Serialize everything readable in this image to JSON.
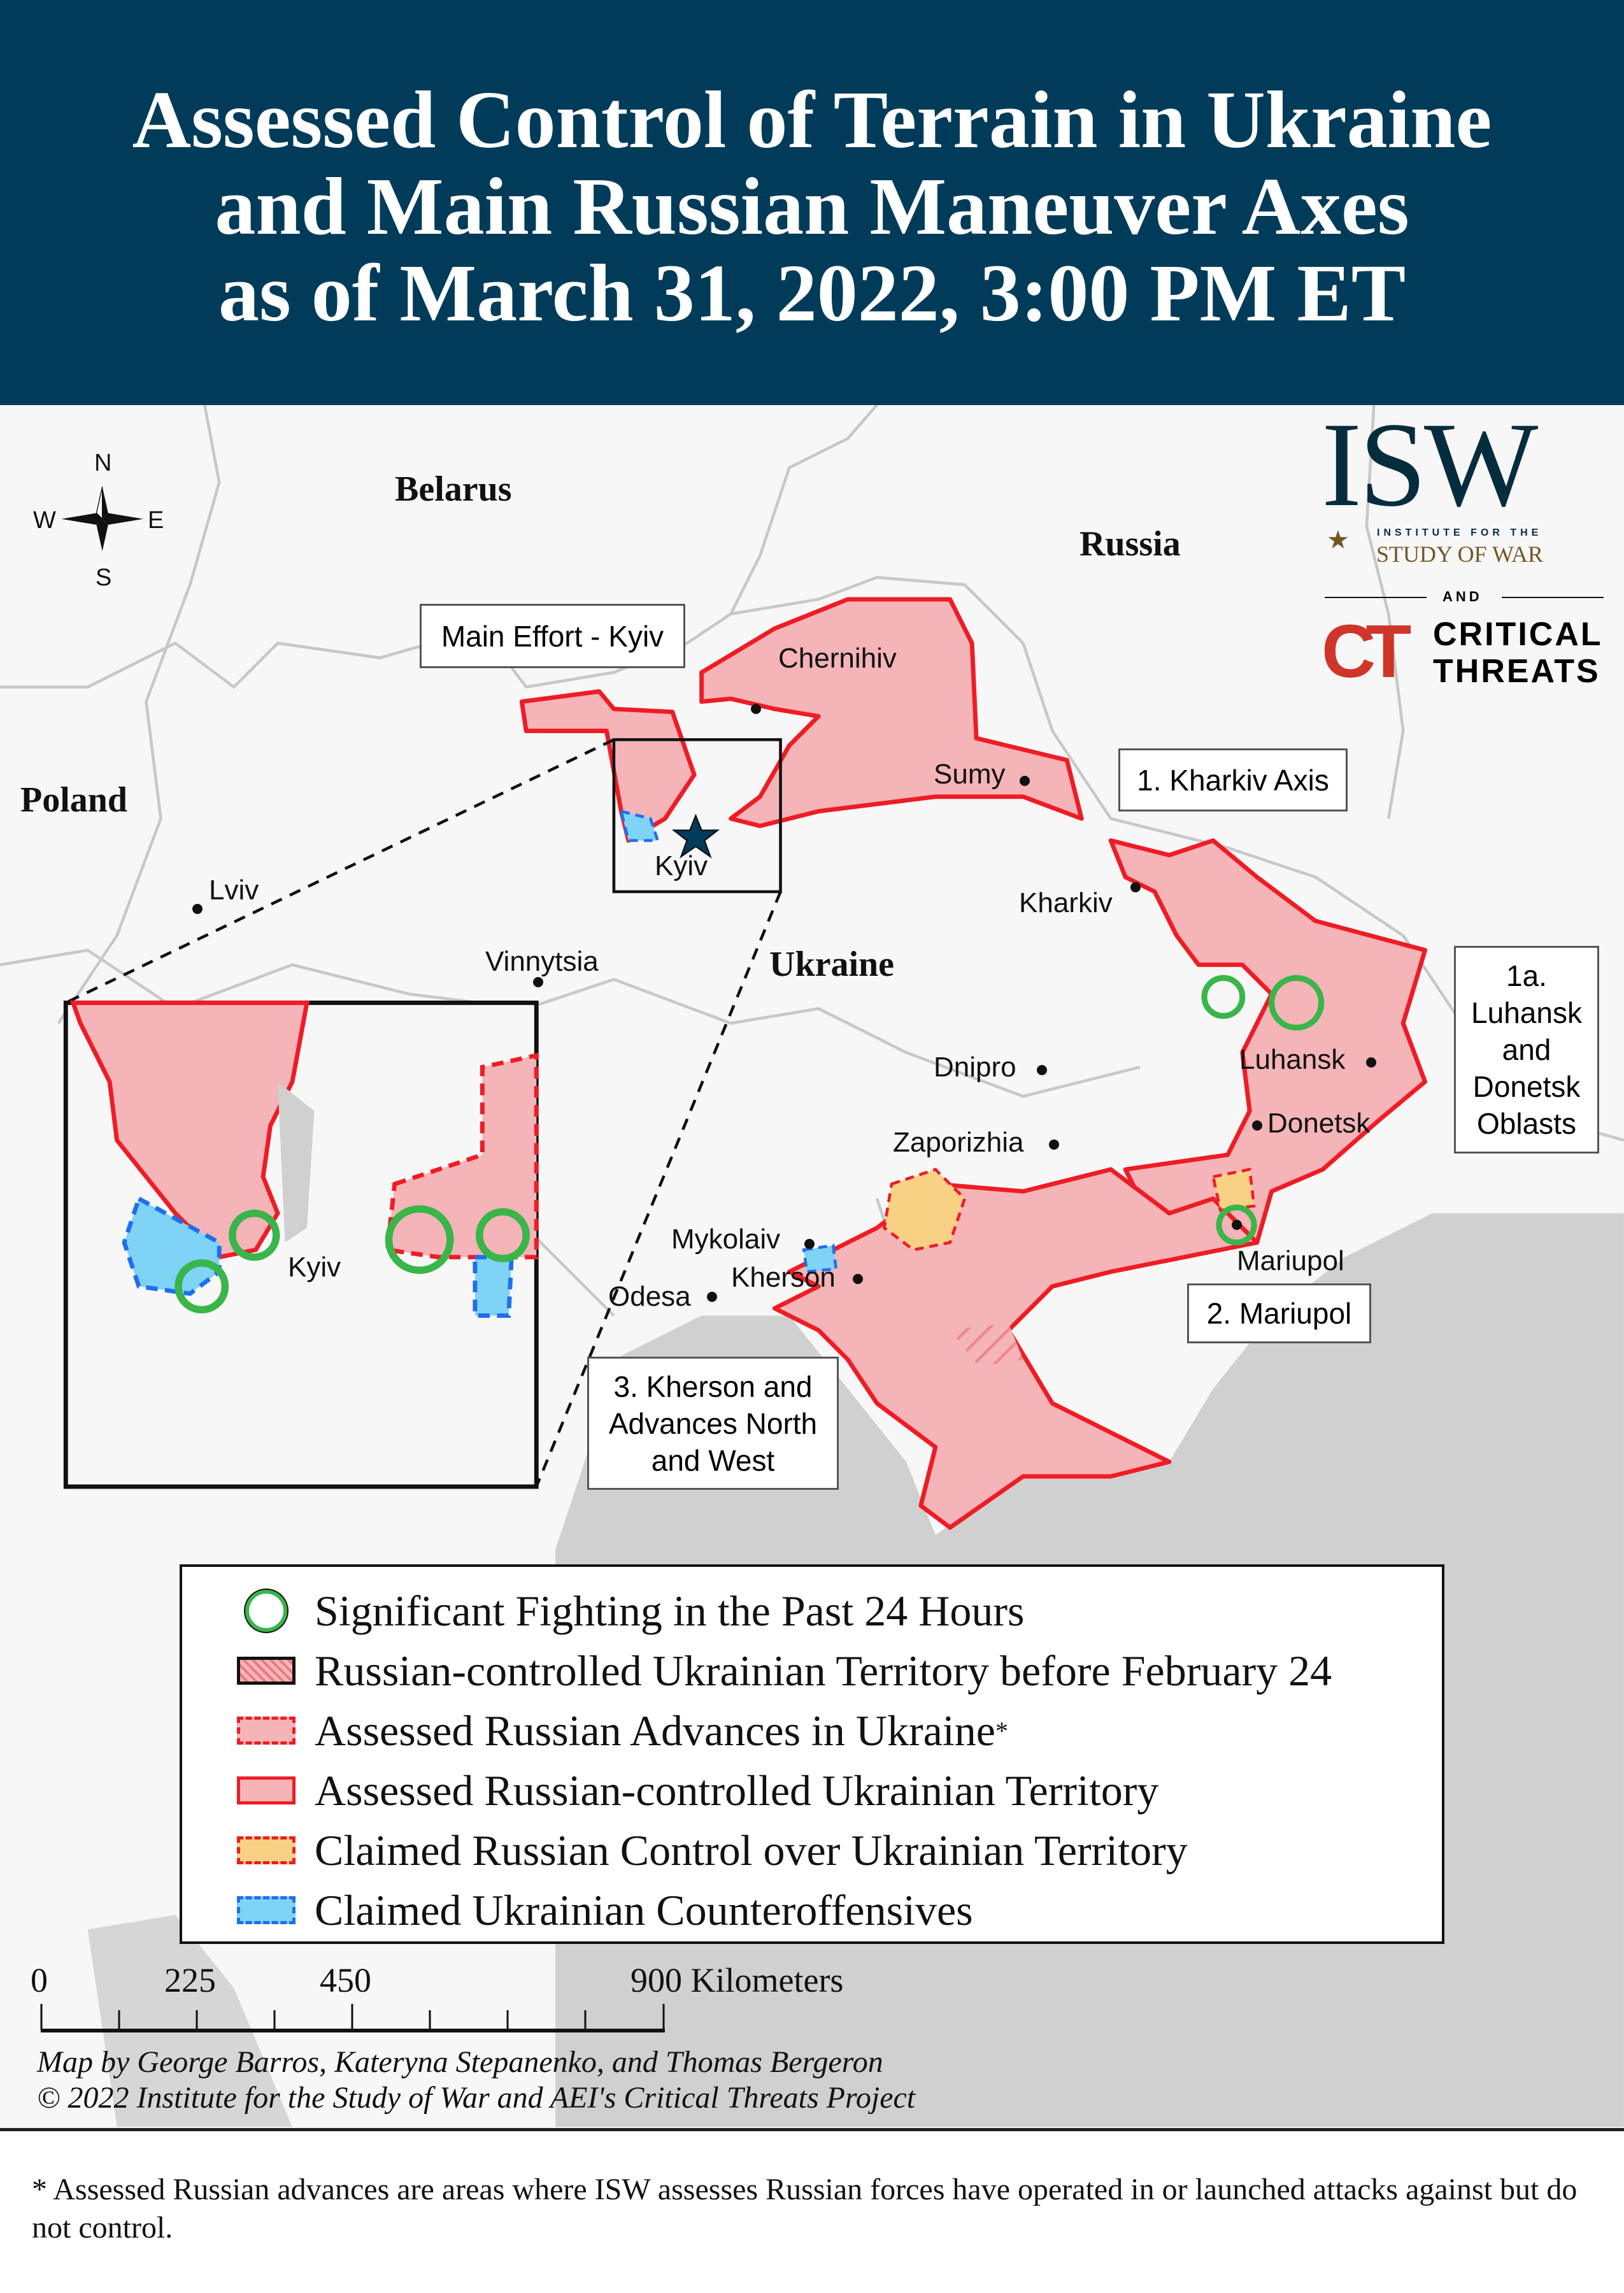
{
  "title": {
    "line1": "Assessed Control of Terrain in Ukraine",
    "line2": "and Main Russian Maneuver Axes",
    "line3": "as of March 31, 2022, 3:00 PM ET"
  },
  "compass": {
    "n": "N",
    "s": "S",
    "e": "E",
    "w": "W"
  },
  "countries": {
    "belarus": "Belarus",
    "russia": "Russia",
    "poland": "Poland",
    "ukraine": "Ukraine"
  },
  "cities": {
    "chernihiv": "Chernihiv",
    "sumy": "Sumy",
    "kharkiv": "Kharkiv",
    "luhansk": "Luhansk",
    "donetsk": "Donetsk",
    "mariupol": "Mariupol",
    "zaporizhia": "Zaporizhia",
    "dnipro": "Dnipro",
    "mykolaiv": "Mykolaiv",
    "kherson": "Kherson",
    "odesa": "Odesa",
    "lviv": "Lviv",
    "vinnytsia": "Vinnytsia",
    "kyiv": "Kyiv",
    "inset_kyiv": "Kyiv"
  },
  "axes": {
    "main_effort": "Main Effort - Kyiv",
    "kharkiv": "1. Kharkiv Axis",
    "luhansk_line1": "1a.",
    "luhansk_line2": "Luhansk",
    "luhansk_line3": "and",
    "luhansk_line4": "Donetsk",
    "luhansk_line5": "Oblasts",
    "mariupol": "2. Mariupol",
    "kherson_line1": "3. Kherson and",
    "kherson_line2": "Advances North",
    "kherson_line3": "and West"
  },
  "logo": {
    "isw": "ISW",
    "isw_sub1": "INSTITUTE FOR THE",
    "isw_sub2": "STUDY OF WAR",
    "and": "AND",
    "ct_mark": "CT",
    "ct_line1": "CRITICAL",
    "ct_line2": "THREATS"
  },
  "legend": {
    "items": [
      {
        "label": "Significant Fighting in the Past 24 Hours",
        "symbol": "green-circle"
      },
      {
        "label": "Russian-controlled Ukrainian Territory before February 24",
        "symbol": "hatched-red"
      },
      {
        "label": "Assessed Russian Advances in Ukraine",
        "superscript": "*",
        "symbol": "dashed-red-pink"
      },
      {
        "label": "Assessed Russian-controlled Ukrainian Territory",
        "symbol": "solid-red-pink"
      },
      {
        "label": "Claimed Russian Control over Ukrainian Territory",
        "symbol": "dashed-red-orange"
      },
      {
        "label": "Claimed Ukrainian Counteroffensives",
        "symbol": "dashed-blue-cyan"
      }
    ]
  },
  "scale": {
    "t0": "0",
    "t1": "225",
    "t2": "450",
    "t3": "900 Kilometers"
  },
  "credits": {
    "line1": "Map by George Barros, Kateryna Stepanenko, and Thomas Bergeron",
    "line2": "© 2022 Institute for the Study of War and AEI's Critical Threats Project"
  },
  "footnote": "* Assessed Russian advances are areas where ISW assesses Russian forces have operated in or launched attacks against but do not control.",
  "colors": {
    "header": "#003c5a",
    "russian_fill": "#f4b4b8",
    "russian_border": "#ee1c25",
    "claimed_russian": "#f9d185",
    "ukrainian_counter": "#7fd3f5",
    "ukrainian_border": "#1e6ff0",
    "fighting_ring": "#39b54a",
    "sea": "#d0d0d0",
    "isw_navy": "#062d3e",
    "isw_gold": "#745624",
    "ct_red": "#d0352a"
  }
}
